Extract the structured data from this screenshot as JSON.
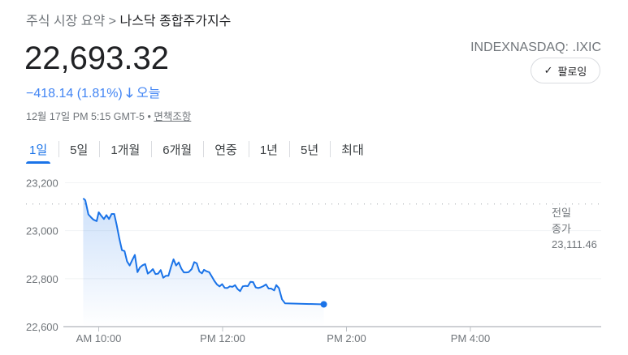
{
  "breadcrumb": {
    "parent": "주식 시장 요약",
    "separator": ">",
    "current": "나스닥 종합주가지수"
  },
  "price": "22,693.32",
  "change": {
    "value": "−418.14 (1.81%)",
    "arrow": "arrow-down-icon",
    "label": "오늘"
  },
  "timestamp": {
    "text": "12월 17일 PM 5:15 GMT-5 •",
    "disclaimer": "면책조항"
  },
  "ticker": "INDEXNASDAQ: .IXIC",
  "follow_button": {
    "label": "팔로잉",
    "icon": "check-icon"
  },
  "tabs": [
    {
      "label": "1일",
      "active": true
    },
    {
      "label": "5일"
    },
    {
      "label": "1개월"
    },
    {
      "label": "6개월"
    },
    {
      "label": "연중"
    },
    {
      "label": "1년"
    },
    {
      "label": "5년"
    },
    {
      "label": "최대"
    }
  ],
  "colors": {
    "line": "#1a73e8",
    "change": "#4285f4"
  },
  "chart_data": {
    "type": "line",
    "x_unit": "minutes since 9:30",
    "ylim": [
      22600,
      23200
    ],
    "yticks": [
      23200,
      23000,
      22800,
      22600
    ],
    "ytick_labels": [
      "23,200",
      "23,000",
      "22,800",
      "22,600"
    ],
    "xticks": [
      30,
      150,
      270,
      390
    ],
    "xtick_labels": [
      "AM 10:00",
      "PM 12:00",
      "PM 2:00",
      "PM 4:00"
    ],
    "xlim": [
      10,
      300
    ],
    "previous_close": {
      "value": 23111.46,
      "label_line1": "전일",
      "label_line2": "종가",
      "label_value": "23,111.46"
    },
    "x": [
      15,
      17,
      20,
      22.5,
      25,
      28,
      30,
      32.5,
      35,
      37.5,
      40,
      42.5,
      45,
      47.5,
      50,
      52.5,
      55,
      57.5,
      60,
      62.5,
      65,
      67.5,
      70,
      72.5,
      75,
      77.5,
      80,
      82.5,
      85,
      87.5,
      90,
      92.5,
      95,
      97.5,
      100,
      102.5,
      105,
      107.5,
      110,
      112.5,
      115,
      117,
      120,
      122.5,
      125,
      127.5,
      130,
      132,
      134.5,
      137,
      140,
      142,
      144.5,
      147,
      149.5,
      152,
      154.5,
      157,
      159.5,
      162,
      164.5,
      167,
      169.5,
      172,
      174.5,
      177,
      179.5,
      182,
      184.5,
      187,
      189.5,
      192,
      194.5,
      197,
      200,
      202,
      204.5,
      207.5,
      210.5,
      248
    ],
    "values": [
      23135,
      23127,
      23068,
      23056,
      23046,
      23040,
      23077,
      23062,
      23049,
      23065,
      23049,
      23070,
      23070,
      23023,
      22967,
      22919,
      22915,
      22872,
      22855,
      22878,
      22899,
      22827,
      22847,
      22856,
      22861,
      22821,
      22829,
      22840,
      22819,
      22821,
      22836,
      22804,
      22812,
      22812,
      22849,
      22881,
      22855,
      22868,
      22842,
      22826,
      22826,
      22827,
      22840,
      22869,
      22864,
      22830,
      22822,
      22837,
      22831,
      22827,
      22806,
      22791,
      22776,
      22768,
      22777,
      22762,
      22761,
      22768,
      22766,
      22773,
      22757,
      22748,
      22768,
      22770,
      22769,
      22787,
      22786,
      22764,
      22761,
      22764,
      22769,
      22776,
      22759,
      22759,
      22751,
      22773,
      22761,
      22714,
      22697,
      22693
    ]
  }
}
